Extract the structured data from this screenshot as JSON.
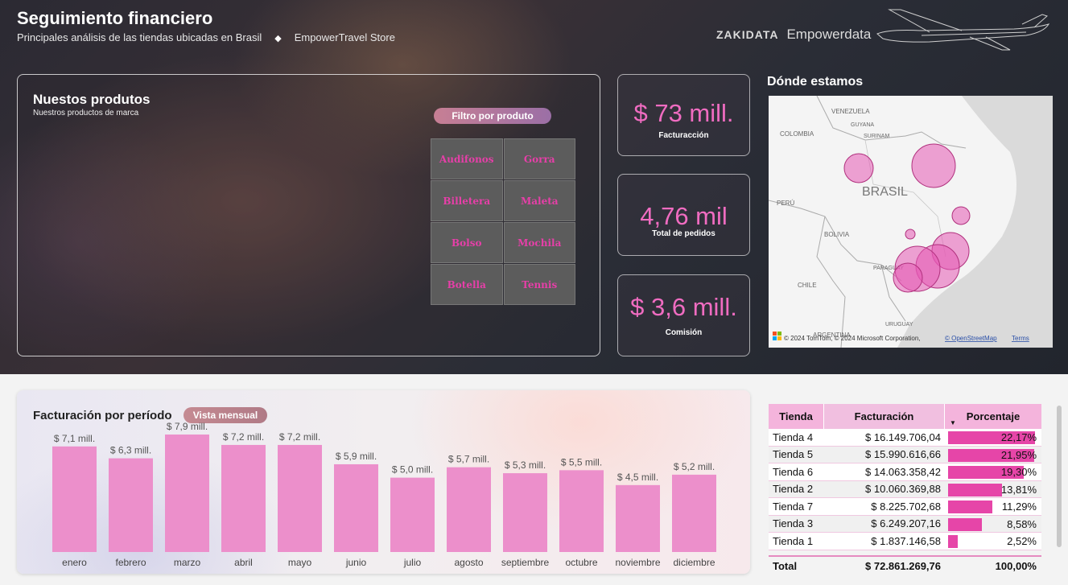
{
  "header": {
    "title": "Seguimiento financiero",
    "subtitle": "Principales análisis de las tiendas ubicadas en Brasil",
    "separator": "◆",
    "store": "EmpowerTravel Store",
    "brand_left": "ZAKIDATA",
    "brand_right": "Empowerdata"
  },
  "products": {
    "title": "Nuestos produtos",
    "subtitle": "Nuestros productos de marca",
    "filter_label": "Filtro por produto",
    "items": [
      "Audifonos",
      "Gorra",
      "Billetera",
      "Maleta",
      "Bolso",
      "Mochila",
      "Botella",
      "Tennis"
    ]
  },
  "kpis": [
    {
      "value": "$ 73 mill.",
      "label": "Facturacción"
    },
    {
      "value": "4,76 mil",
      "label": "Total de pedidos"
    },
    {
      "value": "$ 3,6 mill.",
      "label": "Comisión"
    }
  ],
  "map": {
    "title": "Dónde estamos",
    "labels": [
      "VENEZUELA",
      "GUYANA",
      "SURINAM",
      "COLOMBIA",
      "BRASIL",
      "PERÚ",
      "BOLIVIA",
      "PARAGUAY",
      "CHILE",
      "URUGUAY",
      "ARGENTINA"
    ],
    "attribution": "© 2024 TomTom, © 2024 Microsoft Corporation,",
    "osm_link": "© OpenStreetMap",
    "terms_link": "Terms"
  },
  "period": {
    "title": "Facturación por período",
    "view_button": "Vista mensual"
  },
  "chart_data": {
    "type": "bar",
    "categories": [
      "enero",
      "febrero",
      "marzo",
      "abril",
      "mayo",
      "junio",
      "julio",
      "agosto",
      "septiembre",
      "octubre",
      "noviembre",
      "diciembre"
    ],
    "values": [
      7.1,
      6.3,
      7.9,
      7.2,
      7.2,
      5.9,
      5.0,
      5.7,
      5.3,
      5.5,
      4.5,
      5.2
    ],
    "data_labels": [
      "$ 7,1 mill.",
      "$ 6,3 mill.",
      "$ 7,9 mill.",
      "$ 7,2 mill.",
      "$ 7,2 mill.",
      "$ 5,9 mill.",
      "$ 5,0 mill.",
      "$ 5,7 mill.",
      "$ 5,3 mill.",
      "$ 5,5 mill.",
      "$ 4,5 mill.",
      "$ 5,2 mill."
    ],
    "title": "Facturación por período",
    "color": "#ec8fcb",
    "ylim": [
      0,
      8
    ]
  },
  "table": {
    "headers": [
      "Tienda",
      "Facturación",
      "Porcentaje"
    ],
    "rows": [
      {
        "store": "Tienda 4",
        "revenue": "$ 16.149.706,04",
        "pct": "22,17%",
        "value": 22.17
      },
      {
        "store": "Tienda 5",
        "revenue": "$ 15.990.616,66",
        "pct": "21,95%",
        "value": 21.95
      },
      {
        "store": "Tienda 6",
        "revenue": "$ 14.063.358,42",
        "pct": "19,30%",
        "value": 19.3
      },
      {
        "store": "Tienda 2",
        "revenue": "$ 10.060.369,88",
        "pct": "13,81%",
        "value": 13.81
      },
      {
        "store": "Tienda 7",
        "revenue": "$ 8.225.702,68",
        "pct": "11,29%",
        "value": 11.29
      },
      {
        "store": "Tienda 3",
        "revenue": "$ 6.249.207,16",
        "pct": "8,58%",
        "value": 8.58
      },
      {
        "store": "Tienda 1",
        "revenue": "$ 1.837.146,58",
        "pct": "2,52%",
        "value": 2.52
      }
    ],
    "total_label": "Total",
    "total_revenue": "$ 72.861.269,76",
    "total_pct": "100,00%"
  }
}
